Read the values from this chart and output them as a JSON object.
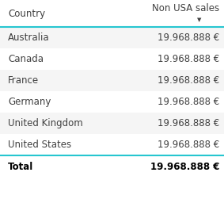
{
  "col1_header": "Country",
  "col2_header": "Non USA sales",
  "rows": [
    [
      "Australia",
      "19.968.888 €"
    ],
    [
      "Canada",
      "19.968.888 €"
    ],
    [
      "France",
      "19.968.888 €"
    ],
    [
      "Germany",
      "19.968.888 €"
    ],
    [
      "United Kingdom",
      "19.968.888 €"
    ],
    [
      "United States",
      "19.968.888 €"
    ]
  ],
  "total_label": "Total",
  "total_value": "19.968.888 €",
  "header_bg": "#ffffff",
  "row_bg_odd": "#f5f5f5",
  "row_bg_even": "#ffffff",
  "total_bg": "#ffffff",
  "header_line_color": "#26c6d0",
  "total_line_color": "#26c6d0",
  "text_color": "#404040",
  "total_text_color": "#000000",
  "header_fontsize": 8.5,
  "row_fontsize": 8.5,
  "total_fontsize": 8.5,
  "sort_arrow_color": "#404040",
  "fig_width": 2.83,
  "fig_height": 2.56,
  "dpi": 100
}
